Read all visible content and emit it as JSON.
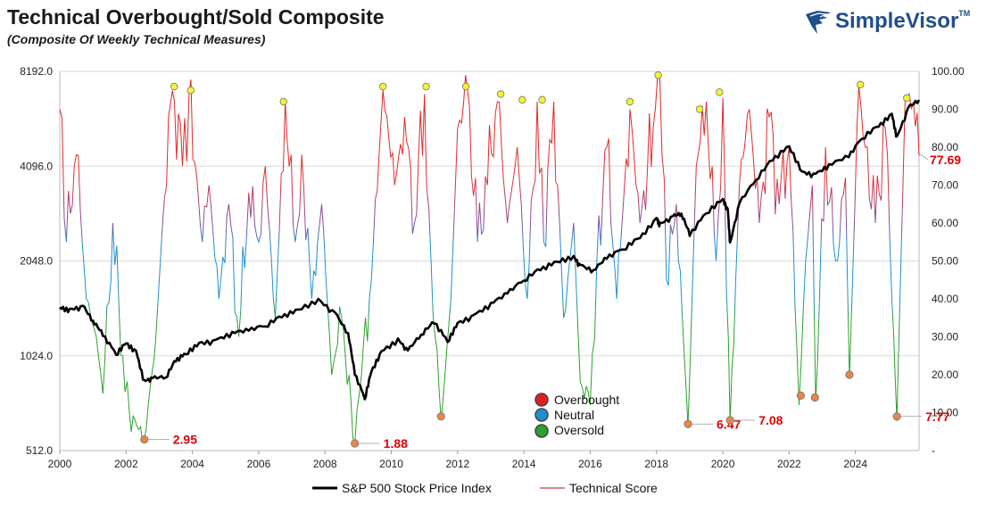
{
  "header": {
    "title": "Technical Overbought/Sold Composite",
    "subtitle": "(Composite Of Weekly Technical Measures)"
  },
  "brand": {
    "name": "SimpleVisor",
    "tm": "TM"
  },
  "chart_data": {
    "type": "line",
    "x_ticks": [
      "2000",
      "2002",
      "2004",
      "2006",
      "2008",
      "2010",
      "2012",
      "2014",
      "2016",
      "2018",
      "2020",
      "2022",
      "2024"
    ],
    "x_range": [
      2000,
      2025.92
    ],
    "left_axis": {
      "scale": "log2",
      "range": [
        512,
        8192
      ],
      "ticks": [
        "8192.0",
        "4096.0",
        "2048.0",
        "1024.0",
        "512.0"
      ]
    },
    "right_axis": {
      "range": [
        0,
        100
      ],
      "ticks": [
        "100.00",
        "90.00",
        "80.00",
        "70.00",
        "60.00",
        "50.00",
        "40.00",
        "30.00",
        "20.00",
        "10.00",
        "-"
      ]
    },
    "grid": "horizontal",
    "colors": {
      "overbought": "#e02020",
      "neutral": "#1e90d0",
      "oversold": "#2ea02e",
      "price": "#000000",
      "annotation": "#e00000"
    },
    "series": [
      {
        "name": "S&P 500 Stock Price Index",
        "axis": "left",
        "x": [
          2000.0,
          2000.3,
          2000.7,
          2001.0,
          2001.3,
          2001.7,
          2002.0,
          2002.3,
          2002.55,
          2002.8,
          2003.2,
          2003.5,
          2003.8,
          2004.2,
          2004.7,
          2005.2,
          2005.7,
          2006.2,
          2006.7,
          2007.2,
          2007.8,
          2008.3,
          2008.7,
          2008.9,
          2009.2,
          2009.4,
          2009.7,
          2010.2,
          2010.5,
          2010.9,
          2011.3,
          2011.7,
          2012.0,
          2012.5,
          2013.0,
          2013.5,
          2014.0,
          2014.5,
          2015.0,
          2015.5,
          2015.7,
          2016.1,
          2016.5,
          2017.0,
          2017.5,
          2018.0,
          2018.1,
          2018.5,
          2018.75,
          2019.0,
          2019.5,
          2020.0,
          2020.15,
          2020.22,
          2020.5,
          2021.0,
          2021.5,
          2022.0,
          2022.4,
          2022.8,
          2023.2,
          2023.8,
          2024.2,
          2024.7,
          2025.1,
          2025.25,
          2025.6,
          2025.92
        ],
        "values": [
          1460,
          1420,
          1450,
          1320,
          1200,
          1050,
          1130,
          1050,
          840,
          860,
          880,
          1000,
          1050,
          1120,
          1130,
          1200,
          1230,
          1290,
          1380,
          1440,
          1530,
          1380,
          1200,
          900,
          760,
          920,
          1050,
          1140,
          1050,
          1200,
          1320,
          1150,
          1300,
          1360,
          1480,
          1610,
          1800,
          1950,
          2050,
          2100,
          1950,
          1900,
          2100,
          2270,
          2450,
          2790,
          2650,
          2800,
          2900,
          2500,
          2950,
          3230,
          2950,
          2300,
          3100,
          3750,
          4350,
          4780,
          3900,
          3800,
          4100,
          4400,
          5100,
          5550,
          6000,
          5000,
          6200,
          6650
        ]
      },
      {
        "name": "Technical Score",
        "axis": "right",
        "anchors_x": [
          2000.0,
          2000.2,
          2000.5,
          2000.8,
          2001.1,
          2001.3,
          2001.6,
          2001.9,
          2002.1,
          2002.55,
          2002.9,
          2003.1,
          2003.4,
          2003.7,
          2003.9,
          2004.3,
          2004.5,
          2004.8,
          2005.1,
          2005.4,
          2005.7,
          2006.0,
          2006.2,
          2006.5,
          2006.8,
          2007.1,
          2007.3,
          2007.6,
          2007.9,
          2008.2,
          2008.5,
          2008.9,
          2009.1,
          2009.4,
          2009.75,
          2010.1,
          2010.4,
          2010.7,
          2011.0,
          2011.2,
          2011.5,
          2011.8,
          2012.0,
          2012.3,
          2012.6,
          2012.9,
          2013.2,
          2013.5,
          2013.8,
          2014.1,
          2014.4,
          2014.6,
          2014.9,
          2015.2,
          2015.5,
          2015.7,
          2016.0,
          2016.2,
          2016.5,
          2016.8,
          2017.2,
          2017.5,
          2017.9,
          2018.1,
          2018.3,
          2018.6,
          2018.95,
          2019.2,
          2019.5,
          2019.8,
          2020.0,
          2020.22,
          2020.5,
          2020.8,
          2021.1,
          2021.4,
          2021.7,
          2022.0,
          2022.3,
          2022.5,
          2022.7,
          2022.8,
          2023.1,
          2023.4,
          2023.7,
          2023.82,
          2024.1,
          2024.3,
          2024.6,
          2024.9,
          2025.1,
          2025.25,
          2025.5,
          2025.75,
          2025.92
        ],
        "anchors_y": [
          90,
          55,
          78,
          40,
          30,
          15,
          60,
          25,
          10,
          2.95,
          30,
          60,
          95,
          75,
          94,
          55,
          70,
          40,
          65,
          30,
          68,
          55,
          75,
          35,
          92,
          55,
          78,
          40,
          65,
          20,
          35,
          1.88,
          20,
          45,
          95,
          70,
          88,
          60,
          94,
          50,
          8,
          40,
          85,
          95,
          55,
          70,
          92,
          60,
          80,
          40,
          92,
          55,
          92,
          35,
          60,
          18,
          12,
          50,
          80,
          40,
          90,
          60,
          85,
          98,
          45,
          65,
          6.47,
          75,
          92,
          50,
          93,
          7.08,
          70,
          90,
          60,
          88,
          65,
          80,
          12,
          50,
          70,
          13,
          80,
          50,
          72,
          19,
          96,
          80,
          60,
          85,
          40,
          7.77,
          93,
          92,
          77.69
        ]
      }
    ],
    "peak_markers": [
      {
        "x": 2003.45,
        "y": 96
      },
      {
        "x": 2003.95,
        "y": 95
      },
      {
        "x": 2006.75,
        "y": 92
      },
      {
        "x": 2009.75,
        "y": 96
      },
      {
        "x": 2011.05,
        "y": 96
      },
      {
        "x": 2012.25,
        "y": 96
      },
      {
        "x": 2013.3,
        "y": 94
      },
      {
        "x": 2013.95,
        "y": 92.5
      },
      {
        "x": 2014.55,
        "y": 92.5
      },
      {
        "x": 2017.2,
        "y": 92
      },
      {
        "x": 2018.05,
        "y": 99
      },
      {
        "x": 2019.3,
        "y": 90
      },
      {
        "x": 2019.9,
        "y": 94.5
      },
      {
        "x": 2024.15,
        "y": 96.5
      },
      {
        "x": 2025.55,
        "y": 93
      }
    ],
    "trough_markers": [
      {
        "x": 2002.55,
        "y": 2.95,
        "label": "2.95"
      },
      {
        "x": 2008.9,
        "y": 1.88,
        "label": "1.88"
      },
      {
        "x": 2011.5,
        "y": 9.0,
        "label": ""
      },
      {
        "x": 2018.95,
        "y": 7.0,
        "label": "6.47"
      },
      {
        "x": 2020.22,
        "y": 8.0,
        "label": "7.08"
      },
      {
        "x": 2022.35,
        "y": 14.5,
        "label": ""
      },
      {
        "x": 2022.78,
        "y": 14.0,
        "label": ""
      },
      {
        "x": 2023.82,
        "y": 20.0,
        "label": ""
      },
      {
        "x": 2025.25,
        "y": 9.0,
        "label": "7.77"
      }
    ],
    "last_value_label": "77.69",
    "legend_groups": [
      "Overbought",
      "Neutral",
      "Oversold"
    ],
    "legend_series": [
      "S&P 500 Stock Price Index",
      "Technical Score"
    ]
  }
}
